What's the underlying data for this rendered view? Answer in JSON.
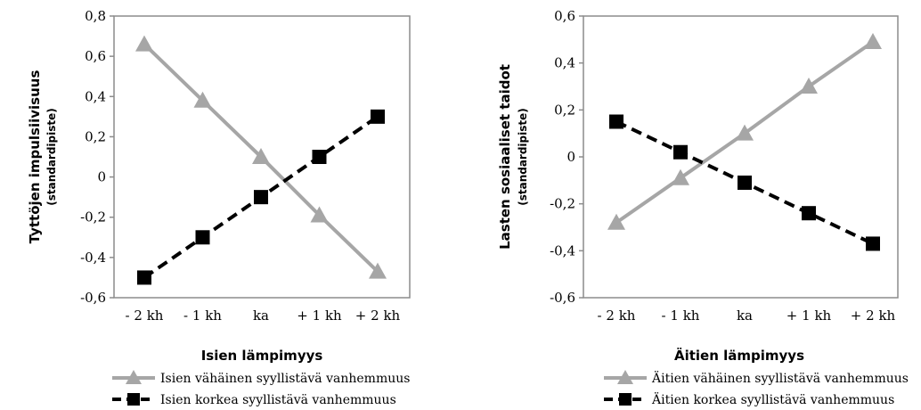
{
  "chart_data": [
    {
      "type": "line",
      "ylabel": "Tyttöjen impulsiivisuus",
      "ylabel_sub": "(standardipiste)",
      "xlabel": "Isien lämpimyys",
      "categories": [
        "- 2 kh",
        "- 1 kh",
        "ka",
        "+ 1 kh",
        "+ 2 kh"
      ],
      "ylim": [
        -0.6,
        0.8
      ],
      "yticks": [
        -0.6,
        -0.4,
        -0.2,
        0,
        0.2,
        0.4,
        0.6,
        0.8
      ],
      "ytick_labels": [
        "-0,6",
        "-0,4",
        "-0,2",
        "0",
        "0,2",
        "0,4",
        "0,6",
        "0,8"
      ],
      "grid": false,
      "legend_position": "bottom",
      "series": [
        {
          "name": "Isien vähäinen syyllistävä vanhemmuus",
          "values": [
            0.66,
            0.38,
            0.1,
            -0.19,
            -0.47
          ],
          "color": "#a6a6a6",
          "marker": "triangle",
          "dash": "solid"
        },
        {
          "name": "Isien korkea syyllistävä vanhemmuus",
          "values": [
            -0.5,
            -0.3,
            -0.1,
            0.1,
            0.3
          ],
          "color": "#000000",
          "marker": "square",
          "dash": "dashed"
        }
      ]
    },
    {
      "type": "line",
      "ylabel": "Lasten sosiaaliset taidot",
      "ylabel_sub": "(standardipiste)",
      "xlabel": "Äitien lämpimyys",
      "categories": [
        "- 2 kh",
        "- 1 kh",
        "ka",
        "+ 1 kh",
        "+ 2 kh"
      ],
      "ylim": [
        -0.6,
        0.6
      ],
      "yticks": [
        -0.6,
        -0.4,
        -0.2,
        0,
        0.2,
        0.4,
        0.6
      ],
      "ytick_labels": [
        "-0,6",
        "-0,4",
        "-0,2",
        "0",
        "0,2",
        "0,4",
        "0,6"
      ],
      "grid": false,
      "legend_position": "bottom",
      "series": [
        {
          "name": "Äitien vähäinen syyllistävä vanhemmuus",
          "values": [
            -0.28,
            -0.09,
            0.1,
            0.3,
            0.49
          ],
          "color": "#a6a6a6",
          "marker": "triangle",
          "dash": "solid"
        },
        {
          "name": "Äitien korkea syyllistävä vanhemmuus",
          "values": [
            0.15,
            0.02,
            -0.11,
            -0.24,
            -0.37
          ],
          "color": "#000000",
          "marker": "square",
          "dash": "dashed"
        }
      ]
    }
  ]
}
